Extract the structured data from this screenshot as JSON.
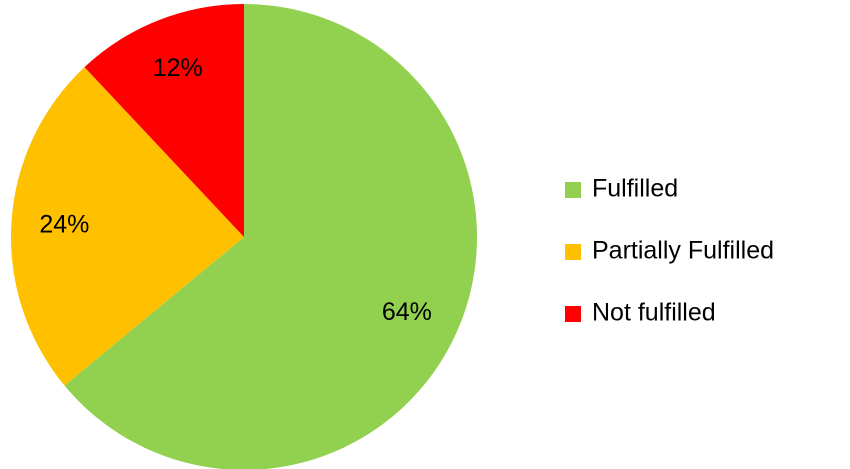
{
  "chart_data": {
    "type": "pie",
    "categories": [
      "Fulfilled",
      "Partially Fulfilled",
      "Not fulfilled"
    ],
    "values": [
      64,
      24,
      12
    ],
    "value_labels": [
      "64%",
      "24%",
      "12%"
    ],
    "colors": [
      "#92d050",
      "#ffc000",
      "#ff0000"
    ],
    "legend": "right"
  }
}
